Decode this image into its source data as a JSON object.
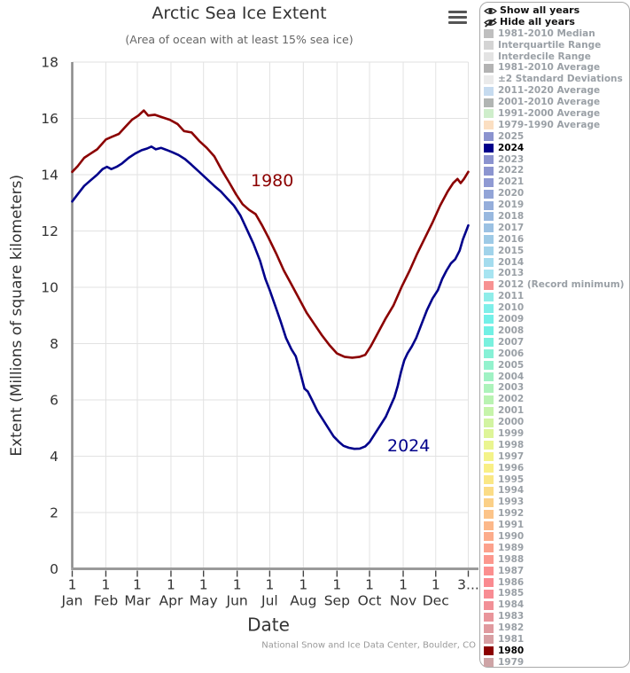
{
  "header": {
    "title": "Arctic Sea Ice Extent",
    "subtitle": "(Area of ocean with at least 15% sea ice)"
  },
  "credit": "National Snow and Ice Data Center, Boulder, CO",
  "legend": {
    "actions": [
      {
        "label": "Show all years",
        "icon": "eye-icon"
      },
      {
        "label": "Hide all years",
        "icon": "eye-slash-icon"
      }
    ],
    "entries": [
      {
        "label": "1981-2010 Median",
        "color": "#bfbfbf",
        "selected": false
      },
      {
        "label": "Interquartile Range",
        "color": "#d4d4d4",
        "selected": false
      },
      {
        "label": "Interdecile Range",
        "color": "#e3e3e3",
        "selected": false
      },
      {
        "label": "1981-2010 Average",
        "color": "#b3b3b3",
        "selected": false
      },
      {
        "label": "±2 Standard Deviations",
        "color": "#eaeaea",
        "selected": false
      },
      {
        "label": "2011-2020 Average",
        "color": "#c6dbef",
        "selected": false
      },
      {
        "label": "2001-2010 Average",
        "color": "#b1b5b3",
        "selected": false
      },
      {
        "label": "1991-2000 Average",
        "color": "#cfeecb",
        "selected": false
      },
      {
        "label": "1979-1990 Average",
        "color": "#fbdfc2",
        "selected": false
      },
      {
        "label": "2025",
        "color": "#8b93cf",
        "selected": false
      },
      {
        "label": "2024",
        "color": "#00008b",
        "selected": true
      },
      {
        "label": "2023",
        "color": "#8b93cf",
        "selected": false
      },
      {
        "label": "2022",
        "color": "#8c95d0",
        "selected": false
      },
      {
        "label": "2021",
        "color": "#8f9ad3",
        "selected": false
      },
      {
        "label": "2020",
        "color": "#92a4d7",
        "selected": false
      },
      {
        "label": "2019",
        "color": "#95aedb",
        "selected": false
      },
      {
        "label": "2018",
        "color": "#98b8df",
        "selected": false
      },
      {
        "label": "2017",
        "color": "#9bc1e3",
        "selected": false
      },
      {
        "label": "2016",
        "color": "#9ecae6",
        "selected": false
      },
      {
        "label": "2015",
        "color": "#a1d3ea",
        "selected": false
      },
      {
        "label": "2014",
        "color": "#a4dcee",
        "selected": false
      },
      {
        "label": "2013",
        "color": "#a7e4f1",
        "selected": false
      },
      {
        "label": "2012 (Record minimum)",
        "color": "#f79292",
        "selected": false
      },
      {
        "label": "2011",
        "color": "#8fede9",
        "selected": false
      },
      {
        "label": "2010",
        "color": "#7fefe9",
        "selected": false
      },
      {
        "label": "2009",
        "color": "#74f0e8",
        "selected": false
      },
      {
        "label": "2008",
        "color": "#71f0e4",
        "selected": false
      },
      {
        "label": "2007",
        "color": "#79f1de",
        "selected": false
      },
      {
        "label": "2006",
        "color": "#86f1d6",
        "selected": false
      },
      {
        "label": "2005",
        "color": "#93f2cd",
        "selected": false
      },
      {
        "label": "2004",
        "color": "#a0f2c4",
        "selected": false
      },
      {
        "label": "2003",
        "color": "#adf3bb",
        "selected": false
      },
      {
        "label": "2002",
        "color": "#b9f3b2",
        "selected": false
      },
      {
        "label": "2001",
        "color": "#c6f4aa",
        "selected": false
      },
      {
        "label": "2000",
        "color": "#d2f4a1",
        "selected": false
      },
      {
        "label": "1999",
        "color": "#def598",
        "selected": false
      },
      {
        "label": "1998",
        "color": "#eaf590",
        "selected": false
      },
      {
        "label": "1997",
        "color": "#f4f389",
        "selected": false
      },
      {
        "label": "1996",
        "color": "#f9ef86",
        "selected": false
      },
      {
        "label": "1995",
        "color": "#fae785",
        "selected": false
      },
      {
        "label": "1994",
        "color": "#fbdc86",
        "selected": false
      },
      {
        "label": "1993",
        "color": "#fbd087",
        "selected": false
      },
      {
        "label": "1992",
        "color": "#fcc489",
        "selected": false
      },
      {
        "label": "1991",
        "color": "#fcb88a",
        "selected": false
      },
      {
        "label": "1990",
        "color": "#fcac8b",
        "selected": false
      },
      {
        "label": "1989",
        "color": "#fca18c",
        "selected": false
      },
      {
        "label": "1988",
        "color": "#fc988e",
        "selected": false
      },
      {
        "label": "1987",
        "color": "#fb8f8f",
        "selected": false
      },
      {
        "label": "1986",
        "color": "#fa8a90",
        "selected": false
      },
      {
        "label": "1985",
        "color": "#f88c93",
        "selected": false
      },
      {
        "label": "1984",
        "color": "#f29097",
        "selected": false
      },
      {
        "label": "1983",
        "color": "#e9959b",
        "selected": false
      },
      {
        "label": "1982",
        "color": "#e09a9f",
        "selected": false
      },
      {
        "label": "1981",
        "color": "#d79fa3",
        "selected": false
      },
      {
        "label": "1980",
        "color": "#8b0000",
        "selected": true
      },
      {
        "label": "1979",
        "color": "#cea4a6",
        "selected": false
      }
    ]
  },
  "chart_data": {
    "type": "line",
    "title": "Arctic Sea Ice Extent",
    "subtitle": "(Area of ocean with at least 15% sea ice)",
    "xlabel": "Date",
    "ylabel": "Extent (Millions of square kilometers)",
    "ylim": [
      0,
      18
    ],
    "yticks": [
      0,
      2,
      4,
      6,
      8,
      10,
      12,
      14,
      16,
      18
    ],
    "grid": true,
    "legend_position": "right",
    "xticks": [
      {
        "day": 1,
        "top": "1",
        "bottom": "Jan"
      },
      {
        "day": 32,
        "top": "1",
        "bottom": "Feb"
      },
      {
        "day": 61,
        "top": "1",
        "bottom": "Mar"
      },
      {
        "day": 92,
        "top": "1",
        "bottom": "Apr"
      },
      {
        "day": 122,
        "top": "1",
        "bottom": "May"
      },
      {
        "day": 153,
        "top": "1",
        "bottom": "Jun"
      },
      {
        "day": 183,
        "top": "1",
        "bottom": "Jul"
      },
      {
        "day": 214,
        "top": "1",
        "bottom": "Aug"
      },
      {
        "day": 245,
        "top": "1",
        "bottom": "Sep"
      },
      {
        "day": 275,
        "top": "1",
        "bottom": "Oct"
      },
      {
        "day": 306,
        "top": "1",
        "bottom": "Nov"
      },
      {
        "day": 336,
        "top": "1",
        "bottom": "Dec"
      },
      {
        "day": 366,
        "top": "3...",
        "bottom": ""
      }
    ],
    "series": [
      {
        "name": "1980",
        "color": "#8b0000",
        "label": {
          "text": "1980",
          "x": 283,
          "y": 210
        },
        "points": [
          [
            1,
            14.1
          ],
          [
            6,
            14.3
          ],
          [
            12,
            14.6
          ],
          [
            18,
            14.75
          ],
          [
            24,
            14.9
          ],
          [
            32,
            15.25
          ],
          [
            38,
            15.35
          ],
          [
            44,
            15.45
          ],
          [
            50,
            15.7
          ],
          [
            56,
            15.95
          ],
          [
            62,
            16.1
          ],
          [
            67,
            16.28
          ],
          [
            71,
            16.1
          ],
          [
            77,
            16.13
          ],
          [
            83,
            16.05
          ],
          [
            91,
            15.95
          ],
          [
            98,
            15.8
          ],
          [
            104,
            15.55
          ],
          [
            111,
            15.5
          ],
          [
            118,
            15.2
          ],
          [
            125,
            14.95
          ],
          [
            132,
            14.65
          ],
          [
            139,
            14.15
          ],
          [
            146,
            13.7
          ],
          [
            152,
            13.3
          ],
          [
            158,
            12.95
          ],
          [
            164,
            12.75
          ],
          [
            170,
            12.6
          ],
          [
            176,
            12.2
          ],
          [
            182,
            11.75
          ],
          [
            189,
            11.2
          ],
          [
            196,
            10.6
          ],
          [
            203,
            10.1
          ],
          [
            210,
            9.6
          ],
          [
            217,
            9.1
          ],
          [
            224,
            8.7
          ],
          [
            231,
            8.3
          ],
          [
            238,
            7.95
          ],
          [
            245,
            7.65
          ],
          [
            252,
            7.53
          ],
          [
            259,
            7.5
          ],
          [
            266,
            7.53
          ],
          [
            271,
            7.6
          ],
          [
            276,
            7.9
          ],
          [
            283,
            8.4
          ],
          [
            290,
            8.9
          ],
          [
            297,
            9.35
          ],
          [
            305,
            10.05
          ],
          [
            312,
            10.6
          ],
          [
            319,
            11.2
          ],
          [
            326,
            11.75
          ],
          [
            333,
            12.3
          ],
          [
            340,
            12.9
          ],
          [
            347,
            13.4
          ],
          [
            352,
            13.7
          ],
          [
            356,
            13.85
          ],
          [
            359,
            13.7
          ],
          [
            362,
            13.85
          ],
          [
            366,
            14.1
          ]
        ]
      },
      {
        "name": "2024",
        "color": "#00008b",
        "label": {
          "text": "2024",
          "x": 437,
          "y": 509
        },
        "points": [
          [
            1,
            13.05
          ],
          [
            6,
            13.3
          ],
          [
            12,
            13.6
          ],
          [
            18,
            13.8
          ],
          [
            24,
            14.0
          ],
          [
            29,
            14.2
          ],
          [
            33,
            14.28
          ],
          [
            37,
            14.2
          ],
          [
            42,
            14.28
          ],
          [
            47,
            14.4
          ],
          [
            53,
            14.6
          ],
          [
            59,
            14.75
          ],
          [
            65,
            14.87
          ],
          [
            70,
            14.93
          ],
          [
            74,
            15.0
          ],
          [
            78,
            14.9
          ],
          [
            83,
            14.95
          ],
          [
            88,
            14.88
          ],
          [
            93,
            14.8
          ],
          [
            99,
            14.7
          ],
          [
            105,
            14.55
          ],
          [
            111,
            14.35
          ],
          [
            118,
            14.1
          ],
          [
            125,
            13.85
          ],
          [
            132,
            13.6
          ],
          [
            138,
            13.4
          ],
          [
            144,
            13.15
          ],
          [
            150,
            12.9
          ],
          [
            156,
            12.55
          ],
          [
            162,
            12.05
          ],
          [
            168,
            11.55
          ],
          [
            174,
            10.95
          ],
          [
            179,
            10.3
          ],
          [
            183,
            9.9
          ],
          [
            188,
            9.35
          ],
          [
            193,
            8.8
          ],
          [
            198,
            8.2
          ],
          [
            203,
            7.8
          ],
          [
            207,
            7.55
          ],
          [
            211,
            7.0
          ],
          [
            215,
            6.4
          ],
          [
            218,
            6.3
          ],
          [
            222,
            6.0
          ],
          [
            227,
            5.6
          ],
          [
            232,
            5.3
          ],
          [
            237,
            5.0
          ],
          [
            242,
            4.7
          ],
          [
            247,
            4.5
          ],
          [
            251,
            4.37
          ],
          [
            256,
            4.3
          ],
          [
            261,
            4.26
          ],
          [
            266,
            4.27
          ],
          [
            271,
            4.35
          ],
          [
            275,
            4.5
          ],
          [
            280,
            4.8
          ],
          [
            285,
            5.1
          ],
          [
            290,
            5.4
          ],
          [
            294,
            5.75
          ],
          [
            298,
            6.1
          ],
          [
            301,
            6.5
          ],
          [
            304,
            7.0
          ],
          [
            307,
            7.4
          ],
          [
            310,
            7.65
          ],
          [
            314,
            7.9
          ],
          [
            318,
            8.2
          ],
          [
            323,
            8.7
          ],
          [
            328,
            9.2
          ],
          [
            333,
            9.6
          ],
          [
            338,
            9.9
          ],
          [
            342,
            10.3
          ],
          [
            346,
            10.6
          ],
          [
            350,
            10.85
          ],
          [
            354,
            11.0
          ],
          [
            358,
            11.3
          ],
          [
            361,
            11.7
          ],
          [
            364,
            12.0
          ],
          [
            366,
            12.2
          ]
        ]
      }
    ]
  }
}
